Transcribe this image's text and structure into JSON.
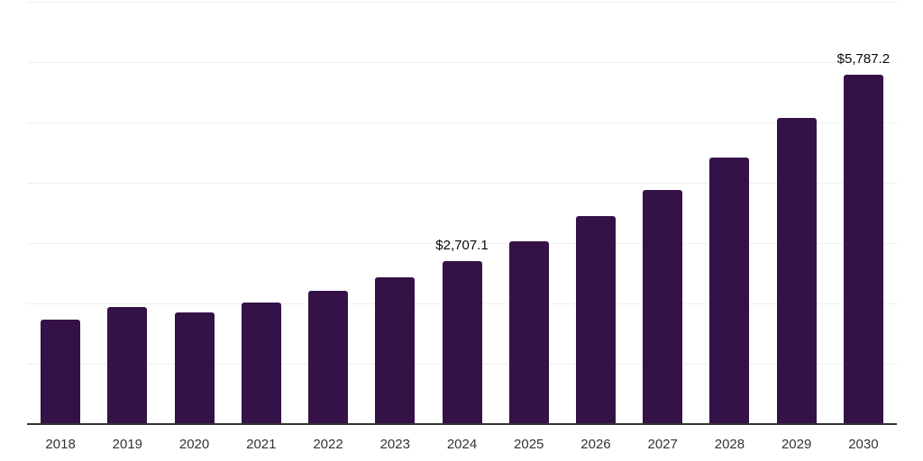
{
  "chart_data": {
    "type": "bar",
    "title": "",
    "xlabel": "",
    "ylabel": "",
    "categories": [
      "2018",
      "2019",
      "2020",
      "2021",
      "2022",
      "2023",
      "2024",
      "2025",
      "2026",
      "2027",
      "2028",
      "2029",
      "2030"
    ],
    "values": [
      1730,
      1935,
      1845,
      2020,
      2215,
      2440,
      2707.1,
      3035,
      3450,
      3880,
      4415,
      5070,
      5787.2
    ],
    "data_labels": [
      null,
      null,
      null,
      null,
      null,
      null,
      "$2,707.1",
      null,
      null,
      null,
      null,
      null,
      "$5,787.2"
    ],
    "ylim": [
      0,
      7000
    ],
    "gridline_step": 1000,
    "grid": "horizontal",
    "legend_position": "none",
    "y_axis_labels_visible": false,
    "colors": {
      "bar": "#341248",
      "gridline": "#efefef",
      "axis_line": "#333333",
      "tick_label": "#333333",
      "value_label": "#0a0a0a",
      "background": "#ffffff"
    }
  }
}
